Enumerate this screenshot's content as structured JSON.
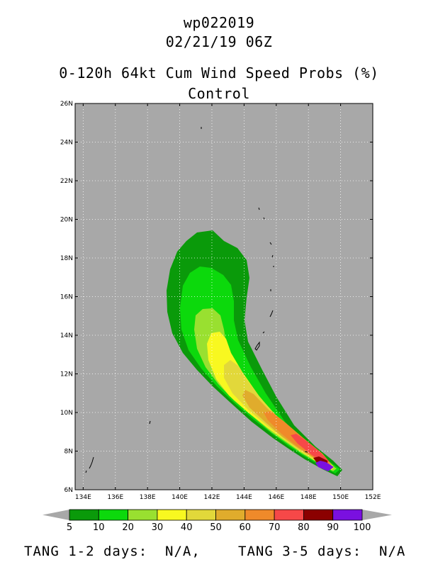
{
  "title": {
    "storm_id": "wp022019",
    "datetime": "02/21/19 06Z",
    "product": "0-120h 64kt Cum Wind Speed Probs (%)",
    "member": "Control"
  },
  "map": {
    "lon_range": [
      133.5,
      152
    ],
    "lat_range": [
      6,
      26
    ],
    "lon_ticks": [
      "134E",
      "136E",
      "138E",
      "140E",
      "142E",
      "144E",
      "146E",
      "148E",
      "150E",
      "152E"
    ],
    "lat_ticks": [
      "6N",
      "8N",
      "10N",
      "12N",
      "14N",
      "16N",
      "18N",
      "20N",
      "22N",
      "24N",
      "26N"
    ],
    "background_color": "#a8a8a8"
  },
  "colorbar": {
    "labels": [
      "5",
      "10",
      "20",
      "30",
      "40",
      "50",
      "60",
      "70",
      "80",
      "90",
      "100"
    ],
    "colors": [
      "#0a9a0a",
      "#0cd90c",
      "#99e030",
      "#f8f820",
      "#e2d83a",
      "#e0ac2c",
      "#ef8a2a",
      "#f64848",
      "#8b0000",
      "#7a10e0"
    ]
  },
  "footer": {
    "left": "TANG 1-2 days:  N/A,",
    "right": "TANG 3-5 days:  N/A"
  },
  "chart_data": {
    "type": "map",
    "title": "0-120h 64kt Cum Wind Speed Probs (%)",
    "subtitle": "Control",
    "contour_levels": [
      5,
      10,
      20,
      30,
      40,
      50,
      60,
      70,
      80,
      90,
      100
    ],
    "max_probability_location": {
      "lon": 149.0,
      "lat": 7.1
    },
    "swath_axis": [
      {
        "lon": 149.0,
        "lat": 7.1
      },
      {
        "lon": 146.0,
        "lat": 9.5
      },
      {
        "lon": 144.0,
        "lat": 11.5
      },
      {
        "lon": 142.6,
        "lat": 13.5
      },
      {
        "lon": 142.0,
        "lat": 15.5
      },
      {
        "lon": 141.5,
        "lat": 17.5
      }
    ]
  }
}
